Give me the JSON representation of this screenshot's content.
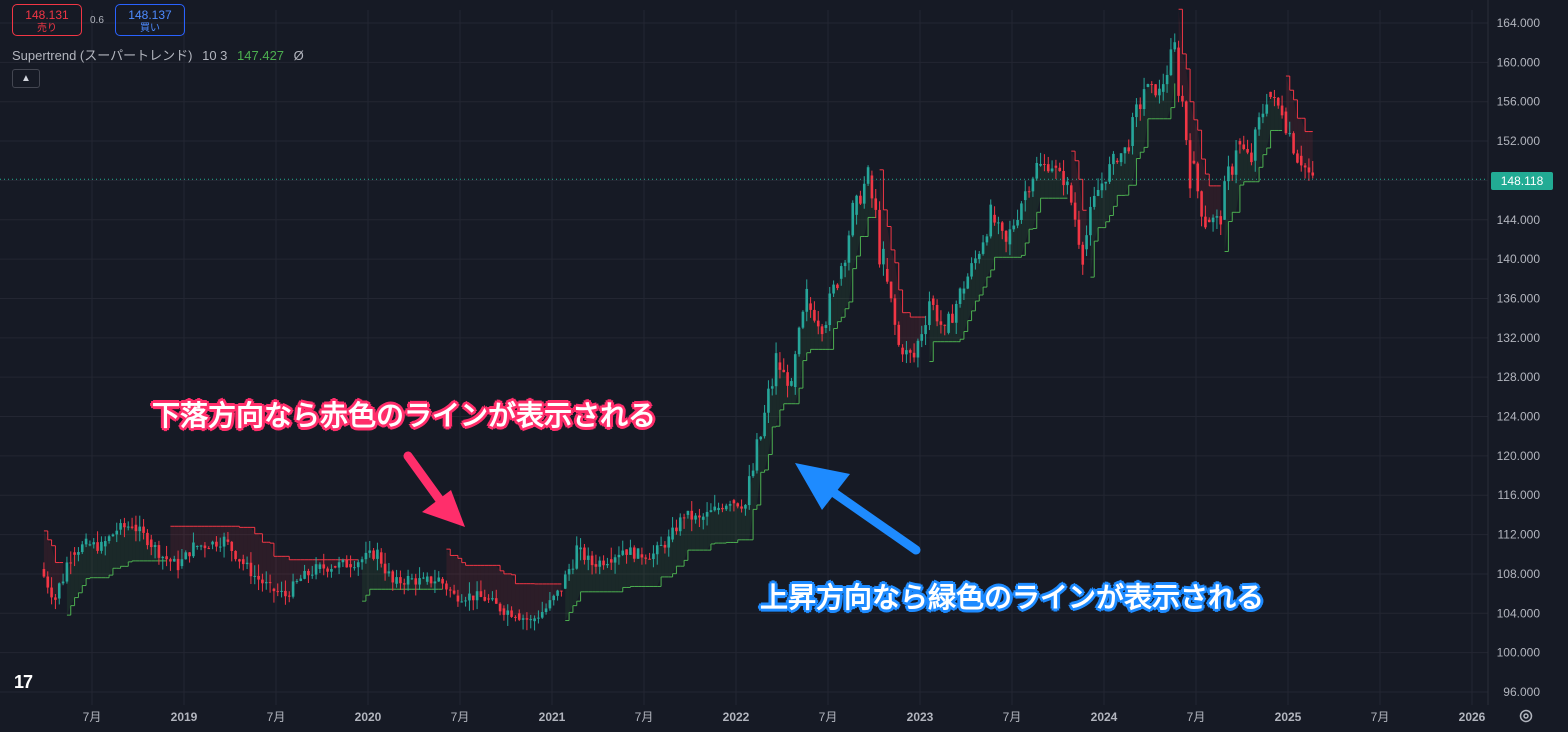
{
  "header": {
    "sell_price": "148.131",
    "sell_label": "売り",
    "spread": "0.6",
    "buy_price": "148.137",
    "buy_label": "買い"
  },
  "indicator": {
    "name": "Supertrend (スーパートレンド)",
    "params": "10 3",
    "value": "147.427",
    "hide_symbol": "Ø"
  },
  "last_price_label": "148.118",
  "annotations": {
    "red": "下落方向なら赤色のラインが表示される",
    "blue": "上昇方向なら緑色のラインが表示される"
  },
  "colors": {
    "up": "#26a69a",
    "down": "#f23645",
    "supertrend_up": "#4caf50",
    "supertrend_down": "#f23645",
    "annot_red": "#ff2e6b",
    "annot_blue": "#1e8bff"
  },
  "icons": {
    "collapse": "chevron-up-icon",
    "settings": "gear-icon",
    "logo": "tradingview-logo"
  },
  "chart_data": {
    "type": "line",
    "title": "",
    "y_axis_ticks": [
      "96.000",
      "100.000",
      "104.000",
      "108.000",
      "112.000",
      "116.000",
      "120.000",
      "124.000",
      "128.000",
      "132.000",
      "136.000",
      "140.000",
      "144.000",
      "148.000",
      "152.000",
      "156.000",
      "160.000",
      "164.000"
    ],
    "ylim": [
      96,
      164
    ],
    "x_axis_ticks": [
      "7月",
      "2019",
      "7月",
      "2020",
      "7月",
      "2021",
      "7月",
      "2022",
      "7月",
      "2023",
      "7月",
      "2024",
      "7月",
      "2025",
      "7月",
      "2026"
    ],
    "last_price": 148.118,
    "series": [
      {
        "x": [
          "2018-04",
          "2018-05",
          "2018-06",
          "2018-07",
          "2018-08",
          "2018-09",
          "2018-10",
          "2018-11",
          "2018-12",
          "2019-01",
          "2019-02",
          "2019-03",
          "2019-04",
          "2019-05",
          "2019-06",
          "2019-07",
          "2019-08",
          "2019-09",
          "2019-10",
          "2019-11",
          "2019-12",
          "2020-01",
          "2020-02",
          "2020-03",
          "2020-04",
          "2020-05",
          "2020-06",
          "2020-07",
          "2020-08",
          "2020-09",
          "2020-10",
          "2020-11",
          "2020-12",
          "2021-01",
          "2021-02",
          "2021-03",
          "2021-04",
          "2021-05",
          "2021-06",
          "2021-07",
          "2021-08",
          "2021-09",
          "2021-10",
          "2021-11",
          "2021-12",
          "2022-01",
          "2022-02",
          "2022-03",
          "2022-04",
          "2022-05",
          "2022-06",
          "2022-07",
          "2022-08",
          "2022-09",
          "2022-10",
          "2022-11",
          "2022-12",
          "2023-01",
          "2023-02",
          "2023-03",
          "2023-04",
          "2023-05",
          "2023-06",
          "2023-07",
          "2023-08",
          "2023-09",
          "2023-10",
          "2023-11",
          "2023-12",
          "2024-01",
          "2024-02",
          "2024-03",
          "2024-04",
          "2024-05",
          "2024-06",
          "2024-07",
          "2024-08",
          "2024-09",
          "2024-10",
          "2024-11",
          "2024-12",
          "2025-01",
          "2025-02",
          "2025-03"
        ],
        "values": [
          108.5,
          105.5,
          110.2,
          111.0,
          110.8,
          112.5,
          113.0,
          111.5,
          109.8,
          108.8,
          110.8,
          111.0,
          111.5,
          109.5,
          107.8,
          106.5,
          105.8,
          107.5,
          108.5,
          108.8,
          109.0,
          109.5,
          110.2,
          107.0,
          107.5,
          107.2,
          107.5,
          105.8,
          105.8,
          105.5,
          104.5,
          104.0,
          103.2,
          104.5,
          106.5,
          110.5,
          109.0,
          109.5,
          110.5,
          110.0,
          110.0,
          111.5,
          114.0,
          113.5,
          114.5,
          115.5,
          115.0,
          122.0,
          129.5,
          127.0,
          135.5,
          133.0,
          138.0,
          144.5,
          148.5,
          139.0,
          131.0,
          130.0,
          136.0,
          132.5,
          136.5,
          140.0,
          144.5,
          141.5,
          146.0,
          149.5,
          149.5,
          147.5,
          141.0,
          147.0,
          150.0,
          151.5,
          157.5,
          157.0,
          161.5,
          150.0,
          144.0,
          144.0,
          152.0,
          150.0,
          157.0,
          155.0,
          150.5,
          148.1
        ]
      }
    ],
    "grid": true
  }
}
